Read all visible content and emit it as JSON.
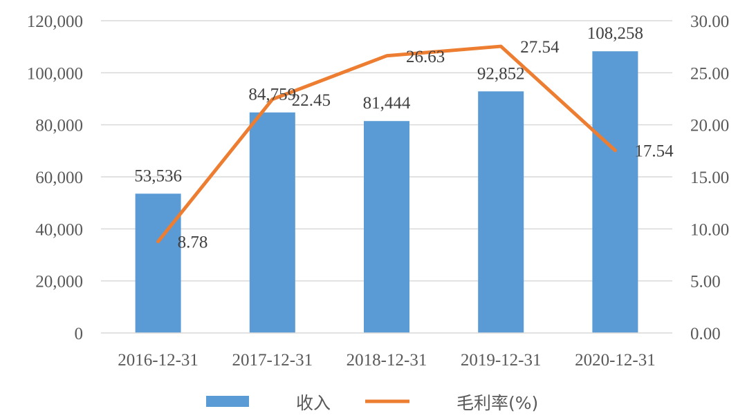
{
  "chart_data": {
    "type": "bar",
    "categories": [
      "2016-12-31",
      "2017-12-31",
      "2018-12-31",
      "2019-12-31",
      "2020-12-31"
    ],
    "series": [
      {
        "name": "收入",
        "type": "bar",
        "axis": "left",
        "values": [
          53536,
          84759,
          81444,
          92852,
          108258
        ],
        "labels": [
          "53,536",
          "84,759",
          "81,444",
          "92,852",
          "108,258"
        ],
        "color": "#5b9bd5"
      },
      {
        "name": "毛利率(%)",
        "type": "line",
        "axis": "right",
        "values": [
          8.78,
          22.45,
          26.63,
          27.54,
          17.54
        ],
        "labels": [
          "8.78",
          "22.45",
          "26.63",
          "27.54",
          "17.54"
        ],
        "color": "#ed7d31"
      }
    ],
    "y_left": {
      "ylim": [
        0,
        120000
      ],
      "ticks": [
        0,
        20000,
        40000,
        60000,
        80000,
        100000,
        120000
      ],
      "tick_labels": [
        "0",
        "20,000",
        "40,000",
        "60,000",
        "80,000",
        "100,000",
        "120,000"
      ]
    },
    "y_right": {
      "ylim": [
        0,
        30
      ],
      "ticks": [
        0,
        5,
        10,
        15,
        20,
        25,
        30
      ],
      "tick_labels": [
        "0.00",
        "5.00",
        "10.00",
        "15.00",
        "20.00",
        "25.00",
        "30.00"
      ]
    },
    "grid": true,
    "legend_position": "bottom"
  }
}
